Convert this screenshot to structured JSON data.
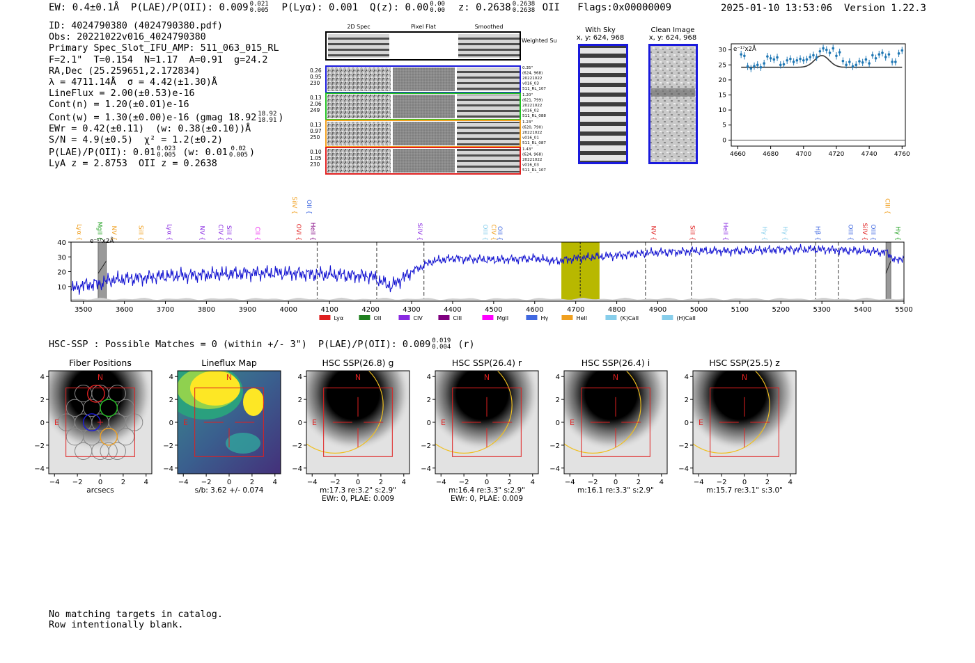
{
  "header": {
    "ew": "EW: 0.4±0.1Å",
    "plae_label": "P(LAE)/P(OII): 0.009",
    "plae_up": "0.021",
    "plae_lo": "0.005",
    "plya": "P(Lyα): 0.001",
    "qz_label": "Q(z): 0.00",
    "qz_up": "0.00",
    "qz_lo": "0.00",
    "z_label": "z: 0.2638",
    "z_up": "0.2638",
    "z_lo": "0.2638",
    "z_line": "OII",
    "flags": "Flags:0x00000009",
    "datetime": "2025-01-10 13:53:06",
    "version": "Version 1.22.3"
  },
  "info": {
    "id": "ID: 4024790380 (4024790380.pdf)",
    "obs": "Obs: 20221022v016_4024790380",
    "slot": "Primary Spec_Slot_IFU_AMP: 511_063_015_RL",
    "params": "F=2.1\"  T=0.154  N=1.17  A=0.91  g=24.2",
    "radec": "RA,Dec (25.259651,2.172834)",
    "lambda": "λ = 4711.14Å  σ = 4.42(±1.30)Å",
    "lineflux": "LineFlux = 2.00(±0.53)e-16",
    "contn": "Cont(n) = 1.20(±0.01)e-16",
    "contw": "Cont(w) = 1.30(±0.00)e-16 (gmag 18.92",
    "gmag_up": "18.92",
    "gmag_lo": "18.91",
    "contw_end": ")",
    "ewr": "EWr = 0.42(±0.11)  (w: 0.38(±0.10))Å",
    "sn": "S/N = 4.9(±0.5)  χ² = 1.2(±0.2)",
    "plae": "P(LAE)/P(OII): 0.01",
    "plae_up": "0.023",
    "plae_lo": "0.005",
    "plae_w": "(w: 0.01",
    "plae_w_up": "0.02",
    "plae_w_lo": "0.005",
    "plae_end": ")",
    "lyaz": "LyA z = 2.8753  OII z = 0.2638"
  },
  "spec2d": {
    "col_headers": [
      "2D Spec",
      "Pixel Flat",
      "Smoothed"
    ],
    "weighted_label": "Weighted Sum",
    "rows": [
      {
        "stats": [
          "0.26",
          "0.95",
          "230"
        ],
        "meta": [
          "0.35\"",
          "(624, 968)",
          "20221022",
          "v016_03",
          "511_RL_107"
        ],
        "color": "#1a1adc"
      },
      {
        "stats": [
          "0.13",
          "2.06",
          "249"
        ],
        "meta": [
          "1.20\"",
          "(621, 799)",
          "20221022",
          "v016_02",
          "511_RL_088"
        ],
        "color": "#22c022"
      },
      {
        "stats": [
          "0.13",
          "0.97",
          "250"
        ],
        "meta": [
          "1.23\"",
          "(620, 790)",
          "20221022",
          "v016_01",
          "511_RL_087"
        ],
        "color": "#f0a020"
      },
      {
        "stats": [
          "0.10",
          "1.05",
          "230"
        ],
        "meta": [
          "1.43\"",
          "(624, 968)",
          "20221022",
          "v016_03",
          "511_RL_107"
        ],
        "color": "#e02020"
      }
    ]
  },
  "cutouts": {
    "with_sky": {
      "title": "With Sky",
      "coords": "x, y: 624, 968"
    },
    "clean": {
      "title": "Clean Image",
      "coords": "x, y: 624, 968"
    }
  },
  "colors": {
    "spectrum": "#1010d0",
    "fit": "#333333",
    "points": "#1f77b4",
    "window": "#b8b800",
    "box": "#e02020"
  },
  "chart_data": [
    {
      "type": "scatter",
      "title": "zoom line fit",
      "unit_label": "e⁻¹⁷x2Å",
      "xlim": [
        4656,
        4762
      ],
      "ylim": [
        -2,
        32
      ],
      "xticks": [
        4660,
        4680,
        4700,
        4720,
        4740,
        4760
      ],
      "yticks": [
        0,
        5,
        10,
        15,
        20,
        25,
        30
      ],
      "x": [
        4662,
        4664,
        4666,
        4668,
        4670,
        4672,
        4674,
        4676,
        4678,
        4680,
        4682,
        4684,
        4686,
        4688,
        4690,
        4692,
        4694,
        4696,
        4698,
        4700,
        4702,
        4704,
        4706,
        4708,
        4710,
        4712,
        4714,
        4716,
        4718,
        4720,
        4722,
        4724,
        4726,
        4728,
        4730,
        4732,
        4734,
        4736,
        4738,
        4740,
        4742,
        4744,
        4746,
        4748,
        4750,
        4752,
        4754,
        4756,
        4758,
        4760
      ],
      "y": [
        28.5,
        28.0,
        24.5,
        23.8,
        24.6,
        25.0,
        24.2,
        25.5,
        27.8,
        27.2,
        26.8,
        27.5,
        25.0,
        25.2,
        26.5,
        27.0,
        26.0,
        26.5,
        27.0,
        26.5,
        26.8,
        27.6,
        28.2,
        27.5,
        29.5,
        30.5,
        30.0,
        29.0,
        30.5,
        28.0,
        29.2,
        26.3,
        25.0,
        26.0,
        24.5,
        25.0,
        26.2,
        25.8,
        26.8,
        25.5,
        28.2,
        27.2,
        28.5,
        29.0,
        27.6,
        28.5,
        26.0,
        26.0,
        28.8,
        29.8
      ],
      "fit": {
        "baseline": 24.2,
        "center": 4711.14,
        "sigma": 4.42,
        "amplitude": 3.9
      }
    },
    {
      "type": "line",
      "title": "full spectrum",
      "unit_label": "e⁻¹⁷x2Å",
      "xlim": [
        3470,
        5500
      ],
      "ylim": [
        0,
        40
      ],
      "xticks": [
        3500,
        3600,
        3700,
        3800,
        3900,
        4000,
        4100,
        4200,
        4300,
        4400,
        4500,
        4600,
        4700,
        4800,
        4900,
        5000,
        5100,
        5200,
        5300,
        5400,
        5500
      ],
      "yticks": [
        10,
        20,
        30,
        40
      ],
      "anchor_x": [
        3470,
        3500,
        3540,
        3560,
        3600,
        3700,
        3800,
        3900,
        4000,
        4100,
        4200,
        4250,
        4300,
        4350,
        4400,
        4500,
        4600,
        4650,
        4700,
        4750,
        4800,
        4850,
        4900,
        5000,
        5100,
        5200,
        5300,
        5400,
        5460,
        5480,
        5500
      ],
      "anchor_y": [
        8,
        11,
        12,
        14,
        15,
        17,
        18,
        19,
        19,
        18,
        17,
        10,
        20,
        27,
        29,
        28,
        29,
        27,
        29,
        30,
        31,
        32,
        33,
        34,
        34,
        35,
        35,
        34,
        33,
        27,
        30
      ],
      "dashed_x": [
        4070,
        4215,
        4330,
        4870,
        4982,
        5285,
        5340
      ],
      "solid_x": 4711,
      "highlight": [
        4665,
        4758
      ],
      "masked": [
        [
          3536,
          3556
        ],
        [
          5456,
          5468
        ]
      ],
      "lines": [
        {
          "name": "Lyα",
          "x": 3480,
          "row": 1,
          "color": "#f0a020"
        },
        {
          "name": "MgII",
          "x": 3530,
          "row": 1,
          "color": "#20a020"
        },
        {
          "name": "NV",
          "x": 3565,
          "row": 1,
          "color": "#f0a020"
        },
        {
          "name": "SiII",
          "x": 3630,
          "row": 1,
          "color": "#f0a020"
        },
        {
          "name": "Lyα",
          "x": 3700,
          "row": 1,
          "color": "#8a2be2"
        },
        {
          "name": "NV",
          "x": 3780,
          "row": 1,
          "color": "#8a2be2"
        },
        {
          "name": "CIV",
          "x": 3825,
          "row": 1,
          "color": "#8a2be2"
        },
        {
          "name": "SiII",
          "x": 3845,
          "row": 1,
          "color": "#8a2be2"
        },
        {
          "name": "CII",
          "x": 3915,
          "row": 1,
          "color": "#ee22ee"
        },
        {
          "name": "SiIV",
          "x": 4005,
          "row": 0,
          "color": "#f0a020"
        },
        {
          "name": "OII",
          "x": 4040,
          "row": 0,
          "color": "#4169e1"
        },
        {
          "name": "OVI",
          "x": 4015,
          "row": 1,
          "color": "#e02020"
        },
        {
          "name": "HeII",
          "x": 4050,
          "row": 1,
          "color": "#800080"
        },
        {
          "name": "SiIV",
          "x": 4310,
          "row": 1,
          "color": "#8a2be2"
        },
        {
          "name": "OIII",
          "x": 4470,
          "row": 1,
          "color": "#87ceeb"
        },
        {
          "name": "CIV",
          "x": 4490,
          "row": 1,
          "color": "#f0a020"
        },
        {
          "name": "OII",
          "x": 4505,
          "row": 1,
          "color": "#4169e1"
        },
        {
          "name": "NV",
          "x": 4880,
          "row": 1,
          "color": "#e02020"
        },
        {
          "name": "SiII",
          "x": 4975,
          "row": 1,
          "color": "#e02020"
        },
        {
          "name": "HeII",
          "x": 5055,
          "row": 1,
          "color": "#8a2be2"
        },
        {
          "name": "Hγ",
          "x": 5150,
          "row": 1,
          "color": "#87ceeb"
        },
        {
          "name": "Hγ",
          "x": 5200,
          "row": 1,
          "color": "#87ceeb"
        },
        {
          "name": "Hβ",
          "x": 5280,
          "row": 1,
          "color": "#4169e1"
        },
        {
          "name": "OIII",
          "x": 5360,
          "row": 1,
          "color": "#4169e1"
        },
        {
          "name": "SiIV",
          "x": 5395,
          "row": 1,
          "color": "#e02020"
        },
        {
          "name": "OIII",
          "x": 5415,
          "row": 1,
          "color": "#4169e1"
        },
        {
          "name": "CIII",
          "x": 5450,
          "row": 0,
          "color": "#f0a020"
        },
        {
          "name": "Hγ",
          "x": 5475,
          "row": 1,
          "color": "#20a020"
        }
      ],
      "legend": [
        {
          "name": "Lyα",
          "color": "#e02020"
        },
        {
          "name": "OII",
          "color": "#208020"
        },
        {
          "name": "CIV",
          "color": "#8a2be2"
        },
        {
          "name": "CIII",
          "color": "#800080"
        },
        {
          "name": "MgII",
          "color": "#ff00ff"
        },
        {
          "name": "Hγ",
          "color": "#4169e1"
        },
        {
          "name": "HeII",
          "color": "#f0a020"
        },
        {
          "name": "(K)CaII",
          "color": "#87ceeb"
        },
        {
          "name": "(H)CaII",
          "color": "#87ceeb"
        }
      ]
    }
  ],
  "hsc": {
    "title_text": "HSC-SSP : Possible Matches = 0 (within +/- 3\")  P(LAE)/P(OII): 0.009",
    "title_up": "0.019",
    "title_lo": "0.004",
    "title_end": "(r)",
    "axis_ticks": [
      "−4",
      "−2",
      "0",
      "2",
      "4"
    ],
    "panels": [
      {
        "title": "Fiber Positions",
        "caption1": "arcsecs",
        "caption2": ""
      },
      {
        "title": "Lineflux Map",
        "caption1": "s/b: 3.62 +/- 0.074",
        "caption2": ""
      },
      {
        "title": "HSC SSP(26.8) g",
        "caption1": "m:17.3  re:3.2\"  s:2.9\"",
        "caption2": "EWr: 0, PLAE: 0.009"
      },
      {
        "title": "HSC SSP(26.4) r",
        "caption1": "m:16.4  re:3.3\"  s:2.9\"",
        "caption2": "EWr: 0, PLAE: 0.009"
      },
      {
        "title": "HSC SSP(26.4) i",
        "caption1": "m:16.1  re:3.3\"  s:2.9\"",
        "caption2": ""
      },
      {
        "title": "HSC SSP(25.5) z",
        "caption1": "m:15.7  re:3.1\"  s:3.0\"",
        "caption2": ""
      }
    ],
    "north": "N",
    "east": "E"
  },
  "notes": {
    "line1": "No matching targets in catalog.",
    "line2": "Row intentionally blank."
  }
}
